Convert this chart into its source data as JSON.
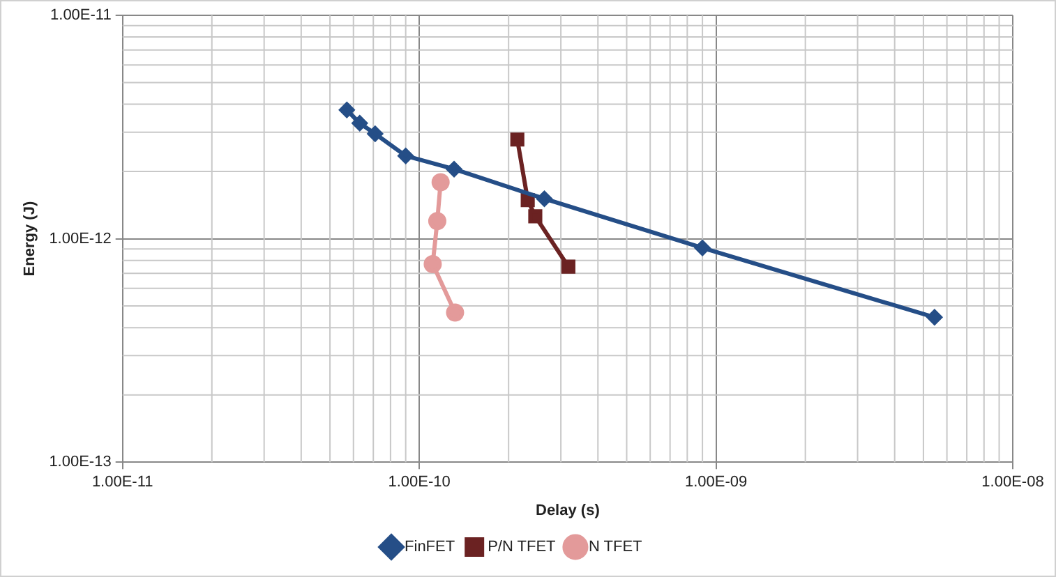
{
  "chart_data": {
    "type": "line",
    "xlabel": "Delay (s)",
    "ylabel": "Energy (J)",
    "log": "xy",
    "grid": true,
    "legend": "bottom",
    "xlim": [
      1e-11,
      1e-08
    ],
    "ylim": [
      1e-13,
      1e-11
    ],
    "xticks": [
      {
        "value": 1e-11,
        "label": "1.00E-11"
      },
      {
        "value": 1e-10,
        "label": "1.00E-10"
      },
      {
        "value": 1e-09,
        "label": "1.00E-09"
      },
      {
        "value": 1e-08,
        "label": "1.00E-08"
      }
    ],
    "yticks": [
      {
        "value": 1e-13,
        "label": "1.00E-13"
      },
      {
        "value": 1e-12,
        "label": "1.00E-12"
      },
      {
        "value": 1e-11,
        "label": "1.00E-11"
      }
    ],
    "series": [
      {
        "name": "FinFET",
        "color": "#254e87",
        "marker": "diamond",
        "x": [
          5.7e-11,
          6.3e-11,
          7.1e-11,
          9e-11,
          1.31e-10,
          2.64e-10,
          9e-10,
          5.45e-09
        ],
        "values": [
          3.77e-12,
          3.29e-12,
          2.95e-12,
          2.35e-12,
          2.05e-12,
          1.51e-12,
          9.1e-13,
          4.45e-13
        ]
      },
      {
        "name": "P/N TFET",
        "color": "#6b2222",
        "marker": "square",
        "x": [
          2.14e-10,
          2.32e-10,
          2.46e-10,
          3.18e-10
        ],
        "values": [
          2.78e-12,
          1.49e-12,
          1.26e-12,
          7.5e-13
        ]
      },
      {
        "name": "N TFET",
        "color": "#e39a9a",
        "marker": "circle",
        "x": [
          1.18e-10,
          1.15e-10,
          1.11e-10,
          1.32e-10
        ],
        "values": [
          1.79e-12,
          1.2e-12,
          7.7e-13,
          4.67e-13
        ]
      }
    ]
  }
}
